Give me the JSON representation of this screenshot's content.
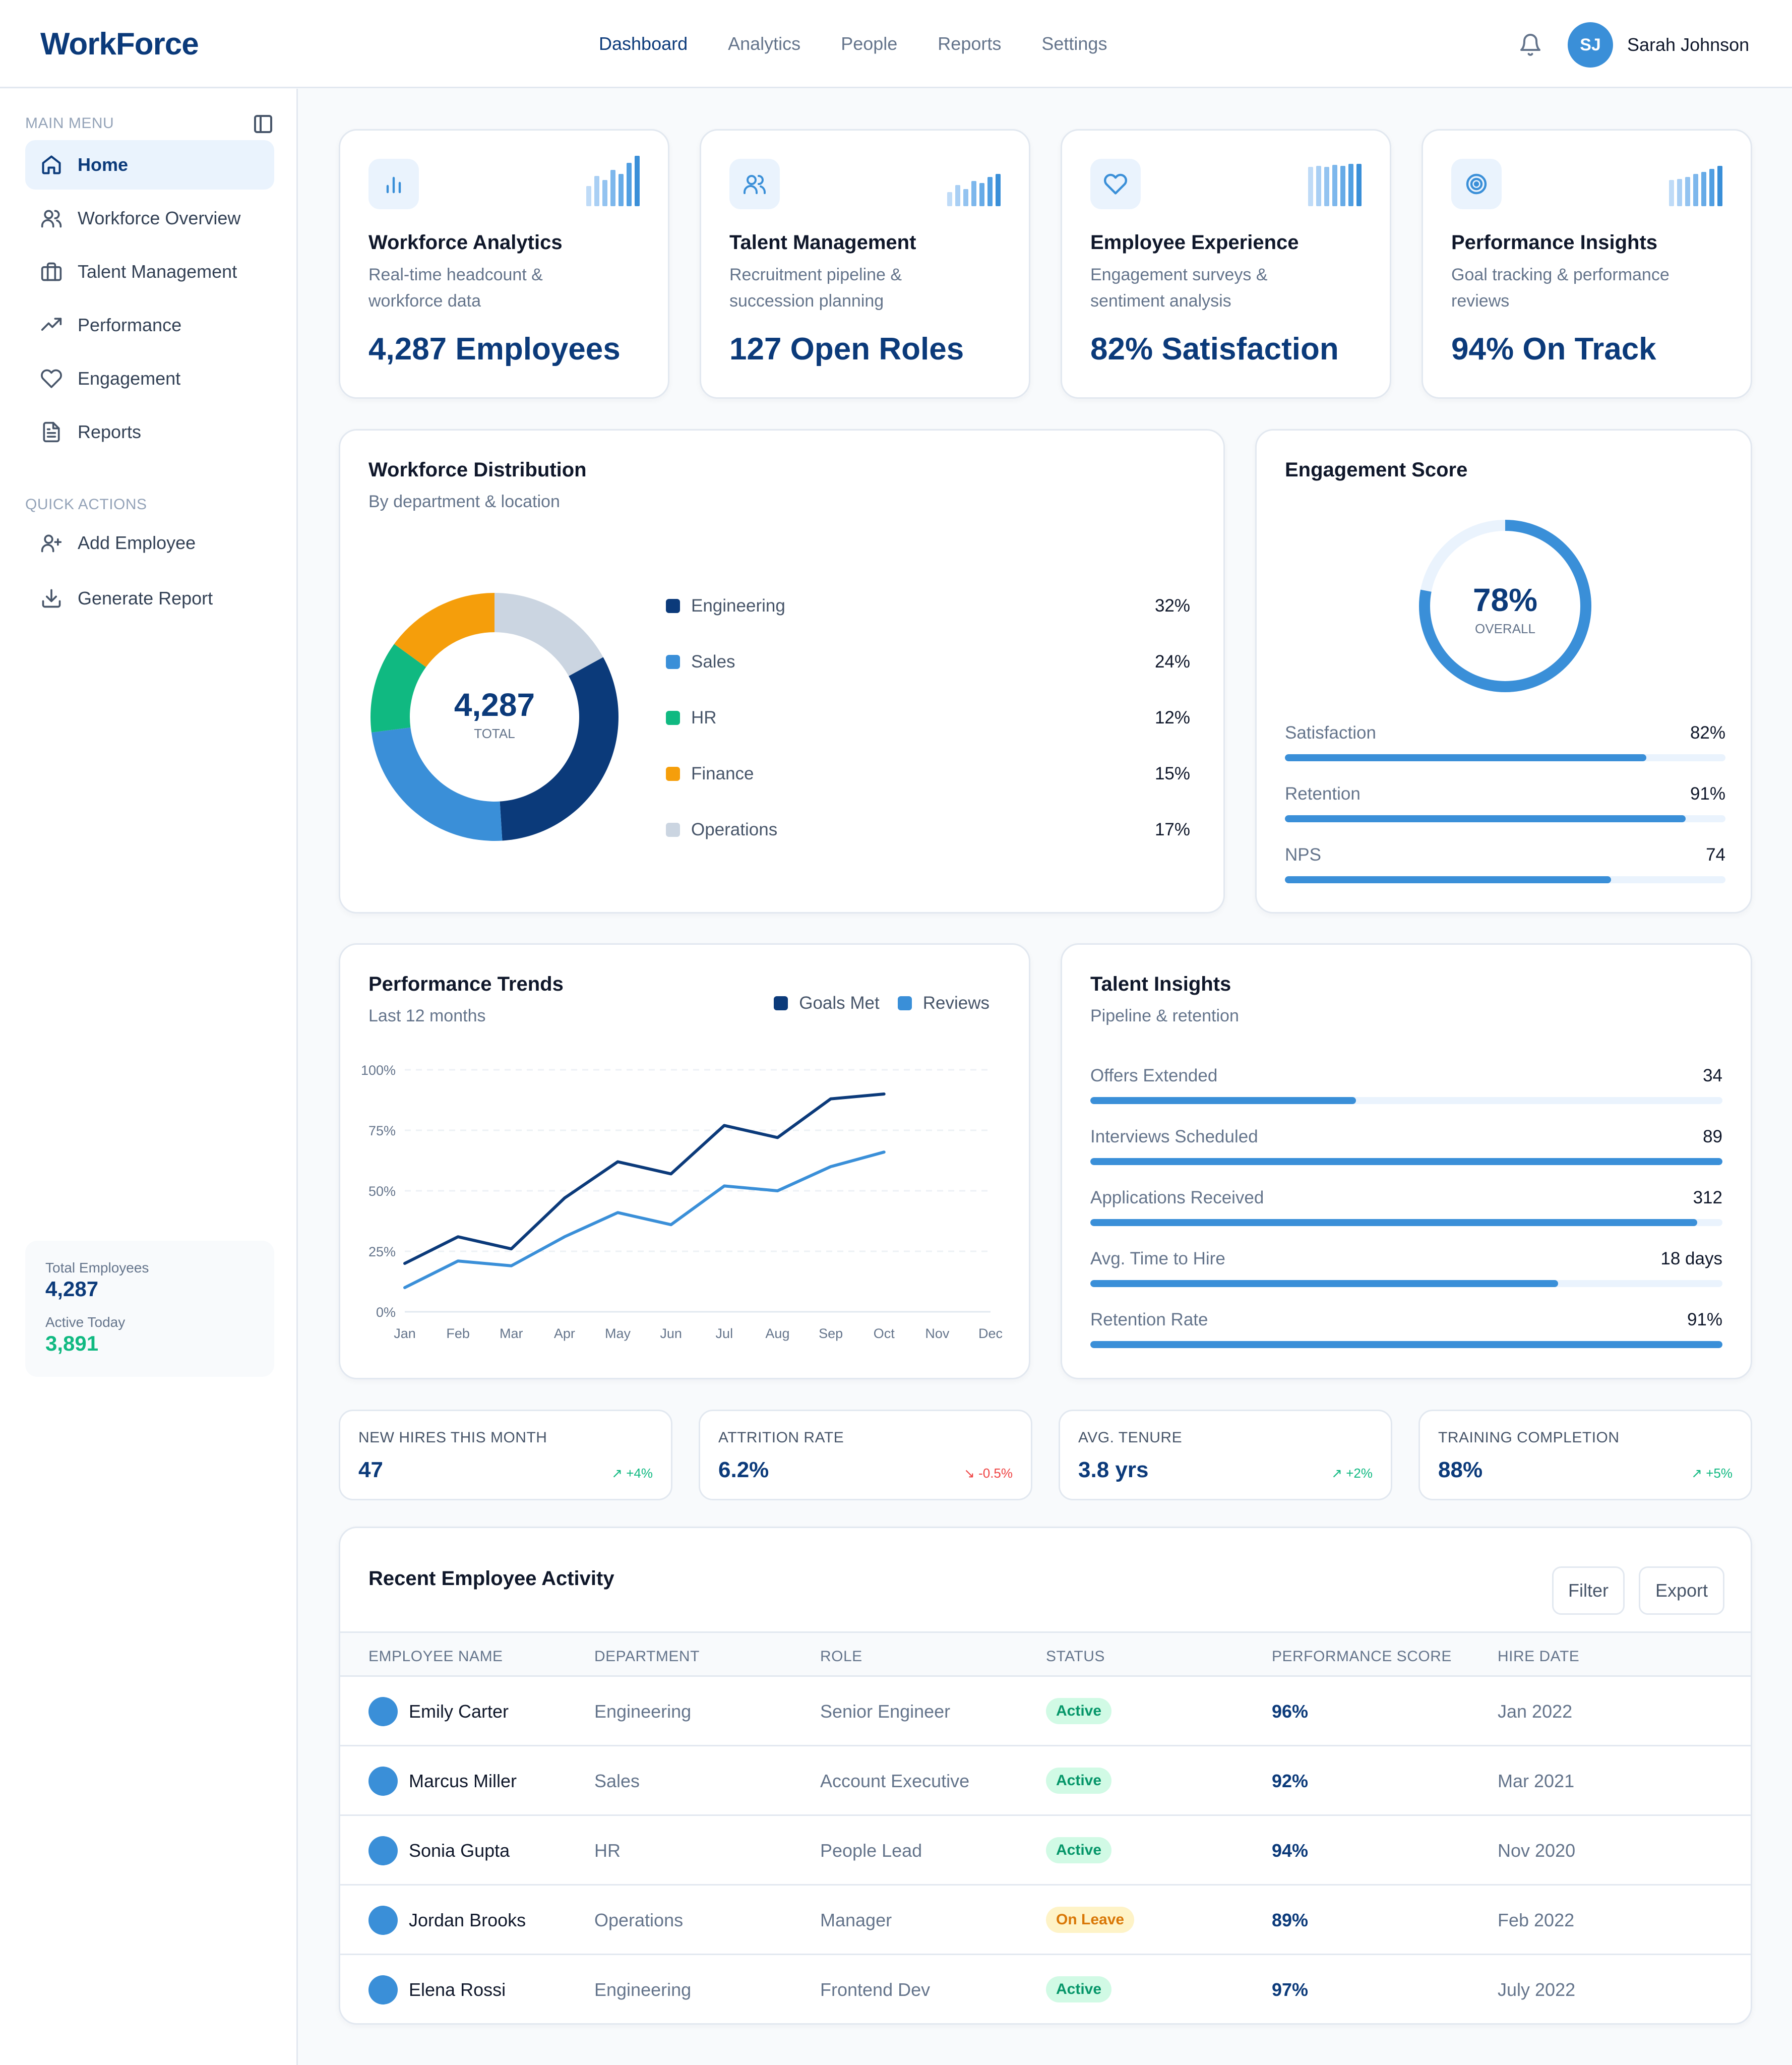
{
  "app": {
    "logo": "WorkForce"
  },
  "topnav": [
    "Dashboard",
    "Analytics",
    "People",
    "Reports",
    "Settings"
  ],
  "user": {
    "initials": "SJ",
    "name": "Sarah Johnson"
  },
  "sidebar": {
    "main_label": "MAIN MENU",
    "items": [
      "Home",
      "Workforce Overview",
      "Talent Management",
      "Performance",
      "Engagement",
      "Reports"
    ],
    "quick_label": "QUICK ACTIONS",
    "quick": [
      "Add Employee",
      "Generate Report"
    ],
    "stats": {
      "total_label": "Total Employees",
      "total_value": "4,287",
      "active_label": "Active Today",
      "active_value": "3,891"
    }
  },
  "features": [
    {
      "title": "Workforce Analytics",
      "desc": "Real-time headcount & workforce data",
      "metric": "4,287 Employees",
      "icon": "bar-chart-icon"
    },
    {
      "title": "Talent Management",
      "desc": "Recruitment pipeline & succession planning",
      "metric": "127 Open Roles",
      "icon": "users-icon"
    },
    {
      "title": "Employee Experience",
      "desc": "Engagement surveys & sentiment analysis",
      "metric": "82% Satisfaction",
      "icon": "heart-icon"
    },
    {
      "title": "Performance Insights",
      "desc": "Goal tracking & performance reviews",
      "metric": "94% On Track",
      "icon": "target-icon"
    }
  ],
  "distribution": {
    "title": "Workforce Distribution",
    "subtitle": "By department & location",
    "center_value": "4,287",
    "center_label": "TOTAL",
    "segments": [
      {
        "name": "Engineering",
        "value": 32,
        "label": "32%",
        "color": "#0b3a7a"
      },
      {
        "name": "Sales",
        "value": 24,
        "label": "24%",
        "color": "#3a8fd8"
      },
      {
        "name": "HR",
        "value": 12,
        "label": "12%",
        "color": "#10b981"
      },
      {
        "name": "Finance",
        "value": 15,
        "label": "15%",
        "color": "#f59e0b"
      },
      {
        "name": "Operations",
        "value": 17,
        "label": "17%",
        "color": "#cbd5e1"
      }
    ]
  },
  "engagement": {
    "title": "Engagement Score",
    "score": 78,
    "score_label": "78%",
    "score_sub": "OVERALL",
    "metrics": [
      {
        "label": "Satisfaction",
        "value": "82%",
        "fill": 0.82
      },
      {
        "label": "Retention",
        "value": "91%",
        "fill": 0.91
      },
      {
        "label": "NPS",
        "value": "74",
        "fill": 0.74
      }
    ]
  },
  "trends": {
    "title": "Performance Trends",
    "subtitle": "Last 12 months",
    "legend": [
      "Goals Met",
      "Reviews"
    ],
    "chart_data": {
      "type": "line",
      "x": [
        "Jan",
        "Feb",
        "Mar",
        "Apr",
        "May",
        "Jun",
        "Jul",
        "Aug",
        "Sep",
        "Oct",
        "Nov",
        "Dec"
      ],
      "ylim": [
        0,
        100
      ],
      "yticks": [
        "0%",
        "25%",
        "50%",
        "75%",
        "100%"
      ],
      "series": [
        {
          "name": "Goals Met",
          "color": "#0b3a7a",
          "values": [
            20,
            31,
            26,
            47,
            62,
            57,
            77,
            72,
            88,
            90,
            null,
            null
          ]
        },
        {
          "name": "Reviews",
          "color": "#3a8fd8",
          "values": [
            10,
            21,
            19,
            31,
            41,
            36,
            52,
            50,
            60,
            66,
            null,
            null
          ]
        }
      ]
    }
  },
  "talent": {
    "title": "Talent Insights",
    "subtitle": "Pipeline & retention",
    "metrics": [
      {
        "label": "Offers Extended",
        "value": "34",
        "fill": 0.42
      },
      {
        "label": "Interviews Scheduled",
        "value": "89",
        "fill": 1.0
      },
      {
        "label": "Applications Received",
        "value": "312",
        "fill": 0.96
      },
      {
        "label": "Avg. Time to Hire",
        "value": "18 days",
        "fill": 0.74
      },
      {
        "label": "Retention Rate",
        "value": "91%",
        "fill": 1.0
      }
    ]
  },
  "kpis": [
    {
      "label": "NEW HIRES THIS MONTH",
      "value": "47",
      "trend": "+4%",
      "dir": "up"
    },
    {
      "label": "ATTRITION RATE",
      "value": "6.2%",
      "trend": "-0.5%",
      "dir": "down"
    },
    {
      "label": "AVG. TENURE",
      "value": "3.8 yrs",
      "trend": "+2%",
      "dir": "up"
    },
    {
      "label": "TRAINING COMPLETION",
      "value": "88%",
      "trend": "+5%",
      "dir": "up"
    }
  ],
  "activity": {
    "title": "Recent Employee Activity",
    "filter_label": "Filter",
    "export_label": "Export",
    "columns": [
      "EMPLOYEE NAME",
      "DEPARTMENT",
      "ROLE",
      "STATUS",
      "PERFORMANCE SCORE",
      "HIRE DATE"
    ],
    "rows": [
      {
        "name": "Emily Carter",
        "dept": "Engineering",
        "role": "Senior Engineer",
        "status": "Active",
        "score": "96%",
        "hire": "Jan 2022"
      },
      {
        "name": "Marcus Miller",
        "dept": "Sales",
        "role": "Account Executive",
        "status": "Active",
        "score": "92%",
        "hire": "Mar 2021"
      },
      {
        "name": "Sonia Gupta",
        "dept": "HR",
        "role": "People Lead",
        "status": "Active",
        "score": "94%",
        "hire": "Nov 2020"
      },
      {
        "name": "Jordan Brooks",
        "dept": "Operations",
        "role": "Manager",
        "status": "On Leave",
        "score": "89%",
        "hire": "Feb 2022"
      },
      {
        "name": "Elena Rossi",
        "dept": "Engineering",
        "role": "Frontend Dev",
        "status": "Active",
        "score": "97%",
        "hire": "July 2022"
      }
    ]
  }
}
